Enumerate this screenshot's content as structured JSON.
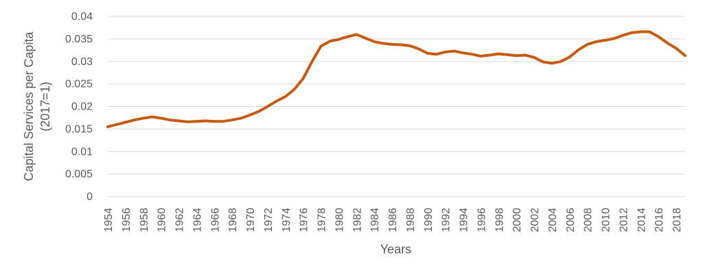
{
  "chart_data": {
    "type": "line",
    "title": "",
    "xlabel": "Years",
    "ylabel_lines": [
      "Capital Services per Capita",
      "(2017=1)"
    ],
    "ylim": [
      0,
      0.04
    ],
    "yticks": [
      "0",
      "0.005",
      "0.01",
      "0.015",
      "0.02",
      "0.025",
      "0.03",
      "0.035",
      "0.04"
    ],
    "xlim": [
      1954,
      2019
    ],
    "xticks": [
      "1954",
      "1956",
      "1958",
      "1960",
      "1962",
      "1964",
      "1966",
      "1968",
      "1970",
      "1972",
      "1974",
      "1976",
      "1978",
      "1980",
      "1982",
      "1984",
      "1986",
      "1988",
      "1990",
      "1992",
      "1994",
      "1996",
      "1998",
      "2000",
      "2002",
      "2004",
      "2006",
      "2008",
      "2010",
      "2012",
      "2014",
      "2016",
      "2018"
    ],
    "grid": true,
    "legend": "none",
    "color": "#c55a11",
    "x": [
      1954,
      1955,
      1956,
      1957,
      1958,
      1959,
      1960,
      1961,
      1962,
      1963,
      1964,
      1965,
      1966,
      1967,
      1968,
      1969,
      1970,
      1971,
      1972,
      1973,
      1974,
      1975,
      1976,
      1977,
      1978,
      1979,
      1980,
      1981,
      1982,
      1983,
      1984,
      1985,
      1986,
      1987,
      1988,
      1989,
      1990,
      1991,
      1992,
      1993,
      1994,
      1995,
      1996,
      1997,
      1998,
      1999,
      2000,
      2001,
      2002,
      2003,
      2004,
      2005,
      2006,
      2007,
      2008,
      2009,
      2010,
      2011,
      2012,
      2013,
      2014,
      2015,
      2016,
      2017,
      2018,
      2019
    ],
    "values": [
      0.0155,
      0.016,
      0.0165,
      0.017,
      0.0174,
      0.0177,
      0.0174,
      0.017,
      0.0168,
      0.0166,
      0.0167,
      0.0168,
      0.0167,
      0.0167,
      0.017,
      0.0174,
      0.0181,
      0.0189,
      0.02,
      0.0212,
      0.0222,
      0.0238,
      0.0262,
      0.03,
      0.0334,
      0.0345,
      0.0349,
      0.0355,
      0.036,
      0.0352,
      0.0344,
      0.034,
      0.0338,
      0.0337,
      0.0335,
      0.0328,
      0.0318,
      0.0316,
      0.0321,
      0.0323,
      0.0319,
      0.0316,
      0.0312,
      0.0314,
      0.0317,
      0.0315,
      0.0313,
      0.0314,
      0.0309,
      0.0299,
      0.0296,
      0.03,
      0.031,
      0.0326,
      0.0338,
      0.0344,
      0.0347,
      0.0351,
      0.0358,
      0.0364,
      0.0366,
      0.0366,
      0.0355,
      0.0341,
      0.0329,
      0.0313
    ]
  }
}
